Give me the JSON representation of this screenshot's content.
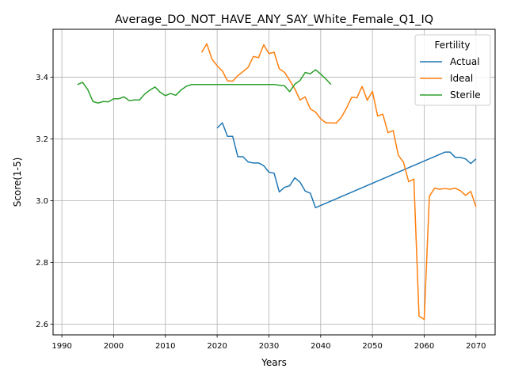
{
  "chart_data": {
    "type": "line",
    "title": "Average_DO_NOT_HAVE_ANY_SAY_White_Female_Q1_IQ",
    "xlabel": "Years",
    "ylabel": "Score(1-5)",
    "xlim": [
      1988.3,
      2073.7
    ],
    "ylim": [
      2.565,
      3.555
    ],
    "xticks": [
      1990,
      2000,
      2010,
      2020,
      2030,
      2040,
      2050,
      2060,
      2070
    ],
    "yticks": [
      2.6,
      2.8,
      3.0,
      3.2,
      3.4
    ],
    "grid": true,
    "legend_title": "Fertility",
    "legend_position": "top-right",
    "series": [
      {
        "name": "Actual",
        "color": "#1f77b4",
        "x": [
          2020,
          2021,
          2022,
          2023,
          2024,
          2025,
          2026,
          2027,
          2028,
          2029,
          2030,
          2031,
          2032,
          2033,
          2034,
          2035,
          2036,
          2037,
          2038,
          2039,
          2064,
          2065,
          2066,
          2067,
          2068,
          2069,
          2070
        ],
        "y": [
          3.235,
          3.252,
          3.208,
          3.208,
          3.142,
          3.142,
          3.125,
          3.122,
          3.122,
          3.113,
          3.092,
          3.089,
          3.028,
          3.043,
          3.048,
          3.074,
          3.06,
          3.031,
          3.024,
          2.977,
          3.157,
          3.157,
          3.14,
          3.14,
          3.135,
          3.12,
          3.135
        ]
      },
      {
        "name": "Ideal",
        "color": "#ff7f0e",
        "x": [
          2017,
          2018,
          2019,
          2020,
          2021,
          2022,
          2023,
          2024,
          2025,
          2026,
          2027,
          2028,
          2029,
          2030,
          2031,
          2032,
          2033,
          2034,
          2035,
          2036,
          2037,
          2038,
          2039,
          2040,
          2041,
          2042,
          2043,
          2044,
          2045,
          2046,
          2047,
          2048,
          2049,
          2050,
          2051,
          2052,
          2053,
          2054,
          2055,
          2056,
          2057,
          2058,
          2059,
          2060,
          2061,
          2062,
          2063,
          2064,
          2065,
          2066,
          2067,
          2068,
          2069,
          2070
        ],
        "y": [
          3.48,
          3.508,
          3.458,
          3.437,
          3.42,
          3.388,
          3.387,
          3.405,
          3.418,
          3.432,
          3.467,
          3.463,
          3.505,
          3.476,
          3.481,
          3.427,
          3.416,
          3.39,
          3.362,
          3.326,
          3.336,
          3.297,
          3.287,
          3.265,
          3.252,
          3.252,
          3.251,
          3.27,
          3.3,
          3.335,
          3.333,
          3.37,
          3.325,
          3.354,
          3.274,
          3.28,
          3.22,
          3.227,
          3.147,
          3.124,
          3.061,
          3.07,
          2.626,
          2.615,
          3.014,
          3.04,
          3.037,
          3.039,
          3.037,
          3.04,
          3.032,
          3.017,
          3.03,
          2.98
        ]
      },
      {
        "name": "Sterile",
        "color": "#2ca02c",
        "x": [
          1993,
          1994,
          1995,
          1996,
          1997,
          1998,
          1999,
          2000,
          2001,
          2002,
          2003,
          2004,
          2005,
          2006,
          2007,
          2008,
          2009,
          2010,
          2011,
          2012,
          2013,
          2014,
          2015,
          2016,
          2017,
          2018,
          2019,
          2020,
          2021,
          2022,
          2023,
          2024,
          2025,
          2026,
          2027,
          2028,
          2029,
          2030,
          2031,
          2032,
          2033,
          2034,
          2035,
          2036,
          2037,
          2038,
          2039,
          2040,
          2041,
          2042
        ],
        "y": [
          3.376,
          3.383,
          3.36,
          3.321,
          3.316,
          3.321,
          3.32,
          3.33,
          3.33,
          3.336,
          3.324,
          3.326,
          3.326,
          3.345,
          3.358,
          3.368,
          3.351,
          3.34,
          3.347,
          3.341,
          3.358,
          3.37,
          3.376,
          3.376,
          3.376,
          3.376,
          3.376,
          3.376,
          3.376,
          3.376,
          3.376,
          3.376,
          3.376,
          3.376,
          3.376,
          3.376,
          3.376,
          3.376,
          3.376,
          3.374,
          3.372,
          3.353,
          3.377,
          3.389,
          3.415,
          3.411,
          3.424,
          3.41,
          3.394,
          3.376
        ]
      }
    ]
  }
}
